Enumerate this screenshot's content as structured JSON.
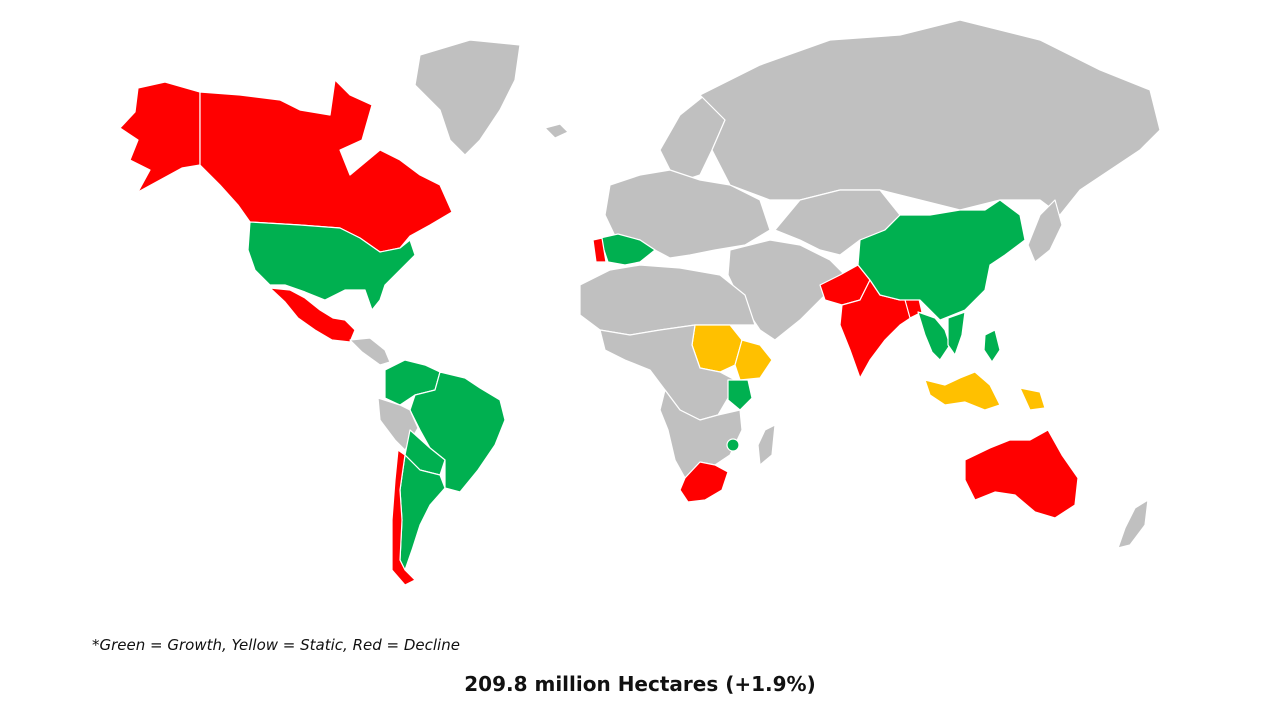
{
  "colors": {
    "growth": "#00b050",
    "static": "#ffc000",
    "decline": "#ff0000",
    "no_data": "#c0c0c0"
  },
  "map": {
    "regions": [
      {
        "name": "alaska",
        "status": "decline"
      },
      {
        "name": "canada",
        "status": "decline"
      },
      {
        "name": "united-states",
        "status": "growth"
      },
      {
        "name": "mexico",
        "status": "decline"
      },
      {
        "name": "central-america",
        "status": "no_data"
      },
      {
        "name": "colombia-venezuela",
        "status": "growth"
      },
      {
        "name": "brazil",
        "status": "growth"
      },
      {
        "name": "peru",
        "status": "no_data"
      },
      {
        "name": "bolivia-paraguay",
        "status": "growth"
      },
      {
        "name": "argentina",
        "status": "growth"
      },
      {
        "name": "chile",
        "status": "decline"
      },
      {
        "name": "greenland",
        "status": "no_data"
      },
      {
        "name": "iceland",
        "status": "no_data"
      },
      {
        "name": "europe",
        "status": "no_data"
      },
      {
        "name": "scandinavia",
        "status": "no_data"
      },
      {
        "name": "spain",
        "status": "growth"
      },
      {
        "name": "portugal",
        "status": "decline"
      },
      {
        "name": "russia",
        "status": "no_data"
      },
      {
        "name": "middle-east",
        "status": "no_data"
      },
      {
        "name": "central-asia",
        "status": "no_data"
      },
      {
        "name": "north-africa",
        "status": "no_data"
      },
      {
        "name": "central-africa",
        "status": "no_data"
      },
      {
        "name": "sudan",
        "status": "static"
      },
      {
        "name": "ethiopia",
        "status": "static"
      },
      {
        "name": "kenya",
        "status": "growth"
      },
      {
        "name": "southern-africa",
        "status": "no_data"
      },
      {
        "name": "mozambique-point",
        "status": "growth"
      },
      {
        "name": "south-africa",
        "status": "decline"
      },
      {
        "name": "madagascar",
        "status": "no_data"
      },
      {
        "name": "pakistan",
        "status": "decline"
      },
      {
        "name": "india",
        "status": "decline"
      },
      {
        "name": "bangladesh",
        "status": "decline"
      },
      {
        "name": "china",
        "status": "growth"
      },
      {
        "name": "myanmar-thailand",
        "status": "growth"
      },
      {
        "name": "vietnam",
        "status": "growth"
      },
      {
        "name": "philippines",
        "status": "growth"
      },
      {
        "name": "japan",
        "status": "no_data"
      },
      {
        "name": "indonesia",
        "status": "static"
      },
      {
        "name": "papua-new-guinea",
        "status": "static"
      },
      {
        "name": "australia",
        "status": "decline"
      },
      {
        "name": "new-zealand",
        "status": "no_data"
      }
    ]
  },
  "legend_note": "*Green = Growth, Yellow = Static, Red = Decline",
  "total_label": "209.8 million Hectares (+1.9%)"
}
